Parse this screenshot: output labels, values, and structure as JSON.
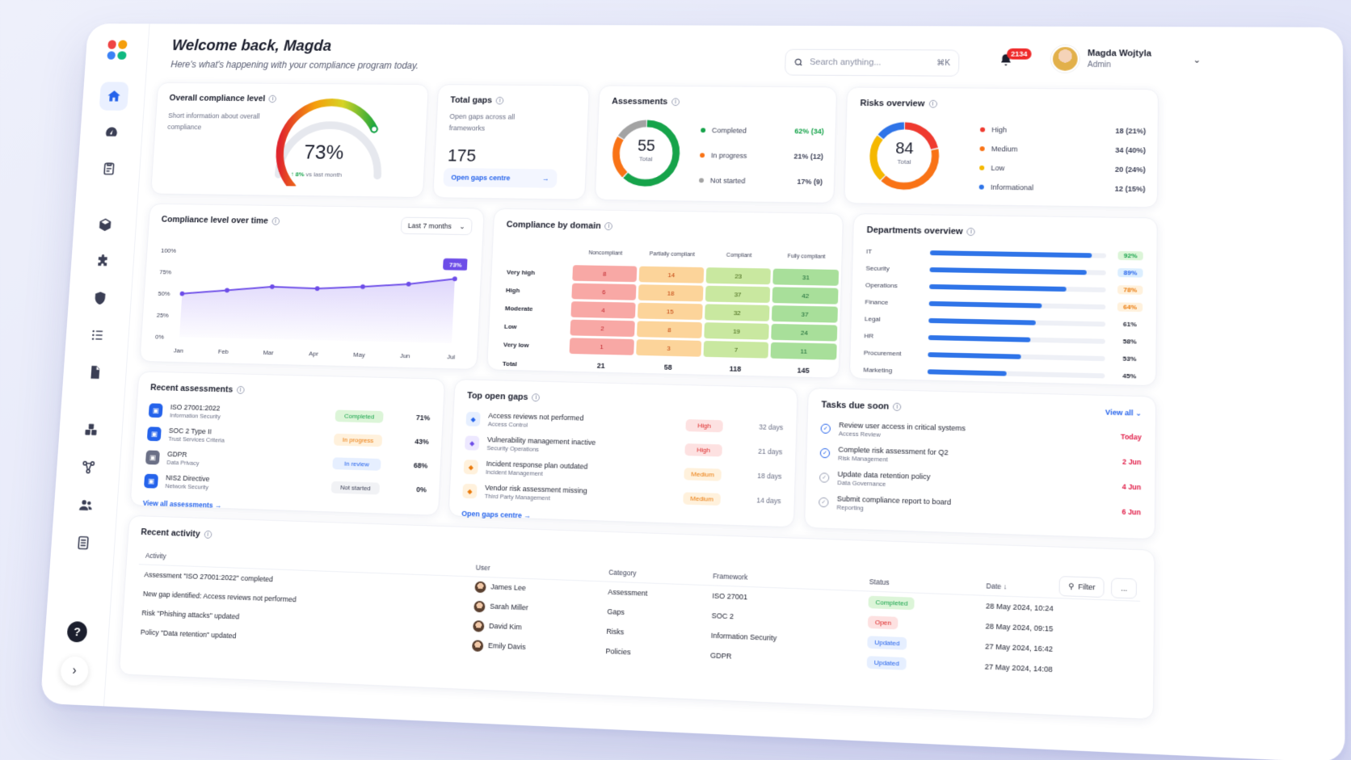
{
  "header": {
    "welcome": "Welcome back, Magda",
    "subtitle": "Here's what's happening with your compliance program today.",
    "search_placeholder": "Search anything...",
    "search_shortcut": "⌘K",
    "notification_count": "2134",
    "user_name": "Magda Wojtyla",
    "user_role": "Admin"
  },
  "overall": {
    "title": "Overall compliance level",
    "description": "Short information about overall compliance",
    "value": "73%",
    "value_fraction": 0.73,
    "delta": "8%",
    "delta_text": "vs last month"
  },
  "gaps": {
    "title": "Total gaps",
    "description": "Open gaps across all frameworks",
    "value": "175",
    "link": "Open gaps centre"
  },
  "assessments": {
    "title": "Assessments",
    "total": "55",
    "total_label": "Total",
    "items": [
      {
        "label": "Completed",
        "value": "62% (34)",
        "count": 34,
        "color": "#16a34a"
      },
      {
        "label": "In progress",
        "value": "21% (12)",
        "count": 12,
        "color": "#f97316"
      },
      {
        "label": "Not started",
        "value": "17% (9)",
        "count": 9,
        "color": "#a3a3a3"
      }
    ]
  },
  "risks": {
    "title": "Risks overview",
    "total": "84",
    "total_label": "Total",
    "items": [
      {
        "label": "High",
        "value": "18 (21%)",
        "count": 18,
        "color": "#ef3a2f"
      },
      {
        "label": "Medium",
        "value": "34 (40%)",
        "count": 34,
        "color": "#f97316"
      },
      {
        "label": "Low",
        "value": "20 (24%)",
        "count": 20,
        "color": "#f5b800"
      },
      {
        "label": "Informational",
        "value": "12 (15%)",
        "count": 12,
        "color": "#2f74e8"
      }
    ]
  },
  "time_chart": {
    "title": "Compliance level over time",
    "range": "Last 7 months",
    "current_label": "73%"
  },
  "chart_data": {
    "type": "line",
    "categories": [
      "Jan",
      "Feb",
      "Mar",
      "Apr",
      "May",
      "Jun",
      "Jul"
    ],
    "series": [
      {
        "values": [
          50,
          55,
          60,
          59,
          62,
          66,
          73
        ]
      }
    ],
    "ylim": [
      0,
      100
    ],
    "yticks": [
      "0%",
      "25%",
      "50%",
      "75%",
      "100%"
    ],
    "grid": false
  },
  "domain": {
    "title": "Compliance by domain",
    "columns": [
      "Noncompliant",
      "Partially compliant",
      "Compliant",
      "Fully compliant"
    ],
    "rows": [
      {
        "label": "Very high",
        "values": [
          "8",
          "14",
          "23",
          "31"
        ]
      },
      {
        "label": "High",
        "values": [
          "6",
          "18",
          "37",
          "42"
        ]
      },
      {
        "label": "Moderate",
        "values": [
          "4",
          "15",
          "32",
          "37"
        ]
      },
      {
        "label": "Low",
        "values": [
          "2",
          "8",
          "19",
          "24"
        ]
      },
      {
        "label": "Very low",
        "values": [
          "1",
          "3",
          "7",
          "11"
        ]
      }
    ],
    "total_label": "Total",
    "totals": [
      "21",
      "58",
      "118",
      "145"
    ],
    "column_colors": [
      "#f8a8a5",
      "#fcd49a",
      "#c9e8a0",
      "#a8df9a"
    ],
    "column_text": [
      "#c0262d",
      "#c2410c",
      "#3f6212",
      "#166534"
    ]
  },
  "departments": {
    "title": "Departments overview",
    "items": [
      {
        "label": "IT",
        "value": "92%",
        "level": 0.92,
        "bg": "#dcf5d8",
        "fg": "#16a34a"
      },
      {
        "label": "Security",
        "value": "89%",
        "level": 0.89,
        "bg": "#dbeeff",
        "fg": "#2563eb"
      },
      {
        "label": "Operations",
        "value": "78%",
        "level": 0.78,
        "bg": "#fff1dc",
        "fg": "#ea7a0b"
      },
      {
        "label": "Finance",
        "value": "64%",
        "level": 0.64,
        "bg": "#fff1dc",
        "fg": "#ea7a0b"
      },
      {
        "label": "Legal",
        "value": "61%",
        "level": 0.61,
        "bg": "transparent",
        "fg": "#1c1f2e"
      },
      {
        "label": "HR",
        "value": "58%",
        "level": 0.58,
        "bg": "transparent",
        "fg": "#1c1f2e"
      },
      {
        "label": "Procurement",
        "value": "53%",
        "level": 0.53,
        "bg": "transparent",
        "fg": "#1c1f2e"
      },
      {
        "label": "Marketing",
        "value": "45%",
        "level": 0.45,
        "bg": "transparent",
        "fg": "#1c1f2e"
      }
    ]
  },
  "recent_assessments": {
    "title": "Recent assessments",
    "link": "View all assessments",
    "items": [
      {
        "name": "ISO 27001:2022",
        "sub": "Information Security",
        "status": "Completed",
        "bg": "#dcf5d8",
        "fg": "#16a34a",
        "pct": "71%"
      },
      {
        "name": "SOC 2 Type II",
        "sub": "Trust Services Criteria",
        "status": "In progress",
        "bg": "#fff1dc",
        "fg": "#ea7a0b",
        "pct": "43%"
      },
      {
        "name": "GDPR",
        "sub": "Data Privacy",
        "status": "In review",
        "bg": "#e6efff",
        "fg": "#2563eb",
        "pct": "68%"
      },
      {
        "name": "NIS2 Directive",
        "sub": "Network Security",
        "status": "Not started",
        "bg": "#f1f2f5",
        "fg": "#3b3f55",
        "pct": "0%"
      }
    ]
  },
  "open_gaps": {
    "title": "Top open gaps",
    "link": "Open gaps centre",
    "items": [
      {
        "name": "Access reviews not performed",
        "sub": "Access Control",
        "severity": "High",
        "bg": "#fde1e1",
        "fg": "#dc2626",
        "age": "32 days"
      },
      {
        "name": "Vulnerability management inactive",
        "sub": "Security Operations",
        "severity": "High",
        "bg": "#fde1e1",
        "fg": "#dc2626",
        "age": "21 days"
      },
      {
        "name": "Incident response plan outdated",
        "sub": "Incident Management",
        "severity": "Medium",
        "bg": "#fff1dc",
        "fg": "#ea7a0b",
        "age": "18 days"
      },
      {
        "name": "Vendor risk assessment missing",
        "sub": "Third Party Management",
        "severity": "Medium",
        "bg": "#fff1dc",
        "fg": "#ea7a0b",
        "age": "14 days"
      }
    ]
  },
  "tasks": {
    "title": "Tasks due soon",
    "link": "View all",
    "items": [
      {
        "name": "Review user access in critical systems",
        "sub": "Access Review",
        "due": "Today"
      },
      {
        "name": "Complete risk assessment for Q2",
        "sub": "Risk Management",
        "due": "2 Jun"
      },
      {
        "name": "Update data retention policy",
        "sub": "Data Governance",
        "due": "4 Jun"
      },
      {
        "name": "Submit compliance report to board",
        "sub": "Reporting",
        "due": "6 Jun"
      }
    ]
  },
  "activity": {
    "title": "Recent activity",
    "filter": "Filter",
    "more": "...",
    "headers": [
      "Activity",
      "User",
      "Category",
      "Framework",
      "Status",
      "Date"
    ],
    "rows": [
      {
        "activity": "Assessment \"ISO 27001:2022\" completed",
        "user": "James Lee",
        "category": "Assessment",
        "framework": "ISO 27001",
        "status": "Completed",
        "bg": "#dcf5d8",
        "fg": "#16a34a",
        "date": "28 May 2024, 10:24"
      },
      {
        "activity": "New gap identified: Access reviews not performed",
        "user": "Sarah Miller",
        "category": "Gaps",
        "framework": "SOC 2",
        "status": "Open",
        "bg": "#fde1e1",
        "fg": "#dc2626",
        "date": "28 May 2024, 09:15"
      },
      {
        "activity": "Risk \"Phishing attacks\" updated",
        "user": "David Kim",
        "category": "Risks",
        "framework": "Information Security",
        "status": "Updated",
        "bg": "#e6efff",
        "fg": "#2563eb",
        "date": "27 May 2024, 16:42"
      },
      {
        "activity": "Policy \"Data retention\" updated",
        "user": "Emily Davis",
        "category": "Policies",
        "framework": "GDPR",
        "status": "Updated",
        "bg": "#e6efff",
        "fg": "#2563eb",
        "date": "27 May 2024, 14:08"
      }
    ]
  }
}
